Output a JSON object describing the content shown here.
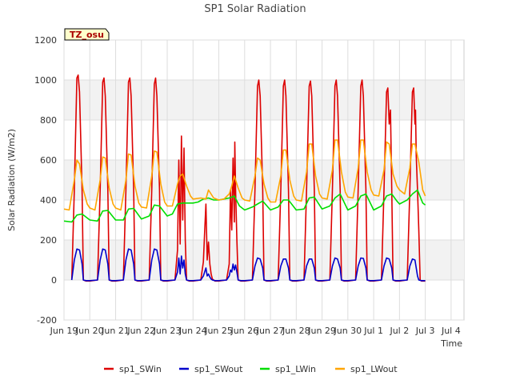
{
  "chart_data": {
    "type": "line",
    "title": "SP1 Solar Radiation",
    "xlabel": "Time",
    "ylabel": "Solar Radiation (W/m2)",
    "badge": "TZ_osu",
    "xlim": [
      0,
      15.5
    ],
    "ylim": [
      -200,
      1200
    ],
    "yticks": [
      -200,
      0,
      200,
      400,
      600,
      800,
      1000,
      1200
    ],
    "x_ticks": [
      {
        "pos": 0,
        "label": "Jun 19"
      },
      {
        "pos": 1,
        "label": "Jun 20"
      },
      {
        "pos": 2,
        "label": "Jun 21"
      },
      {
        "pos": 3,
        "label": "Jun 22"
      },
      {
        "pos": 4,
        "label": "Jun 23"
      },
      {
        "pos": 5,
        "label": "Jun 24"
      },
      {
        "pos": 6,
        "label": "Jun 25"
      },
      {
        "pos": 7,
        "label": "Jun 26"
      },
      {
        "pos": 8,
        "label": "Jun 27"
      },
      {
        "pos": 9,
        "label": "Jun 28"
      },
      {
        "pos": 10,
        "label": "Jun 29"
      },
      {
        "pos": 11,
        "label": "Jun 30"
      },
      {
        "pos": 12,
        "label": "Jul 1"
      },
      {
        "pos": 13,
        "label": "Jul 2"
      },
      {
        "pos": 14,
        "label": "Jul 3"
      },
      {
        "pos": 15,
        "label": "Jul 4"
      }
    ],
    "grid": true,
    "legend_position": "bottom",
    "series": [
      {
        "name": "sp1_SWin",
        "color": "#dd0000",
        "x": [
          0.3,
          0.4,
          0.5,
          0.55,
          0.6,
          0.7,
          0.75,
          0.85,
          1.0,
          1.3,
          1.4,
          1.5,
          1.55,
          1.6,
          1.7,
          1.75,
          1.85,
          2.0,
          2.3,
          2.4,
          2.5,
          2.55,
          2.6,
          2.7,
          2.75,
          2.85,
          3.0,
          3.3,
          3.4,
          3.5,
          3.55,
          3.6,
          3.7,
          3.75,
          3.85,
          4.0,
          4.3,
          4.4,
          4.45,
          4.5,
          4.55,
          4.6,
          4.65,
          4.7,
          4.75,
          4.85,
          5.0,
          5.3,
          5.4,
          5.45,
          5.5,
          5.55,
          5.6,
          5.65,
          5.7,
          5.75,
          5.8,
          5.85,
          6.0,
          6.3,
          6.4,
          6.45,
          6.5,
          6.55,
          6.6,
          6.62,
          6.65,
          6.7,
          6.75,
          6.85,
          7.0,
          7.3,
          7.4,
          7.5,
          7.55,
          7.6,
          7.7,
          7.75,
          7.85,
          8.0,
          8.3,
          8.4,
          8.5,
          8.55,
          8.6,
          8.7,
          8.75,
          8.85,
          9.0,
          9.3,
          9.4,
          9.5,
          9.55,
          9.6,
          9.7,
          9.75,
          9.85,
          10.0,
          10.3,
          10.4,
          10.5,
          10.55,
          10.6,
          10.7,
          10.75,
          10.85,
          11.0,
          11.3,
          11.4,
          11.5,
          11.55,
          11.6,
          11.7,
          11.75,
          11.85,
          12.0,
          12.3,
          12.4,
          12.5,
          12.55,
          12.6,
          12.65,
          12.7,
          12.75,
          12.85,
          13.0,
          13.3,
          13.4,
          13.5,
          13.55,
          13.6,
          13.62,
          13.65,
          13.7,
          13.75,
          13.8,
          13.85,
          14.0
        ],
        "y": [
          0,
          450,
          1010,
          1025,
          940,
          450,
          0,
          -5,
          -5,
          0,
          450,
          990,
          1010,
          920,
          450,
          0,
          -5,
          -5,
          0,
          450,
          990,
          1010,
          920,
          450,
          0,
          -5,
          -5,
          0,
          450,
          980,
          1010,
          920,
          450,
          0,
          -5,
          -5,
          0,
          150,
          600,
          180,
          720,
          300,
          660,
          200,
          0,
          -5,
          -5,
          0,
          90,
          240,
          380,
          100,
          190,
          80,
          30,
          5,
          0,
          -5,
          -5,
          0,
          80,
          450,
          250,
          610,
          290,
          690,
          450,
          200,
          0,
          -5,
          -5,
          0,
          450,
          970,
          1000,
          920,
          450,
          0,
          -5,
          -5,
          0,
          450,
          970,
          1000,
          920,
          450,
          0,
          -5,
          -5,
          0,
          450,
          970,
          995,
          920,
          450,
          0,
          -5,
          -5,
          0,
          450,
          970,
          1000,
          920,
          450,
          0,
          -5,
          -5,
          0,
          450,
          970,
          1000,
          920,
          450,
          0,
          -5,
          -5,
          0,
          450,
          940,
          960,
          780,
          850,
          450,
          0,
          -5,
          -5,
          0,
          450,
          940,
          960,
          780,
          850,
          620,
          450,
          250,
          0,
          -5,
          -5
        ]
      },
      {
        "name": "sp1_SWout",
        "color": "#0000cc",
        "x": [
          0.3,
          0.4,
          0.5,
          0.6,
          0.7,
          0.75,
          0.85,
          1.0,
          1.3,
          1.4,
          1.5,
          1.6,
          1.7,
          1.75,
          1.85,
          2.0,
          2.3,
          2.4,
          2.5,
          2.6,
          2.7,
          2.75,
          2.85,
          3.0,
          3.3,
          3.4,
          3.5,
          3.6,
          3.7,
          3.75,
          3.85,
          4.0,
          4.3,
          4.4,
          4.45,
          4.5,
          4.55,
          4.6,
          4.65,
          4.7,
          4.75,
          4.85,
          5.0,
          5.3,
          5.4,
          5.45,
          5.5,
          5.55,
          5.6,
          5.65,
          5.7,
          5.75,
          5.85,
          6.0,
          6.3,
          6.4,
          6.45,
          6.5,
          6.55,
          6.6,
          6.65,
          6.7,
          6.75,
          6.85,
          7.0,
          7.3,
          7.4,
          7.5,
          7.6,
          7.7,
          7.75,
          7.85,
          8.0,
          8.3,
          8.4,
          8.5,
          8.6,
          8.7,
          8.75,
          8.85,
          9.0,
          9.3,
          9.4,
          9.5,
          9.6,
          9.7,
          9.75,
          9.85,
          10.0,
          10.3,
          10.4,
          10.5,
          10.6,
          10.7,
          10.75,
          10.85,
          11.0,
          11.3,
          11.4,
          11.5,
          11.6,
          11.7,
          11.75,
          11.85,
          12.0,
          12.3,
          12.4,
          12.5,
          12.6,
          12.7,
          12.75,
          12.85,
          13.0,
          13.3,
          13.4,
          13.5,
          13.6,
          13.65,
          13.7,
          13.75,
          13.85,
          14.0
        ],
        "y": [
          0,
          100,
          155,
          150,
          80,
          0,
          -3,
          -3,
          0,
          100,
          155,
          150,
          80,
          0,
          -3,
          -3,
          0,
          100,
          155,
          150,
          80,
          0,
          -3,
          -3,
          0,
          100,
          155,
          150,
          80,
          0,
          -3,
          -3,
          0,
          40,
          110,
          30,
          120,
          60,
          100,
          30,
          0,
          -3,
          -3,
          0,
          20,
          40,
          60,
          20,
          30,
          15,
          5,
          0,
          -3,
          -3,
          0,
          20,
          50,
          40,
          80,
          50,
          75,
          40,
          0,
          -3,
          -3,
          0,
          70,
          110,
          105,
          60,
          0,
          -3,
          -3,
          0,
          70,
          105,
          105,
          60,
          0,
          -3,
          -3,
          0,
          70,
          105,
          105,
          60,
          0,
          -3,
          -3,
          0,
          70,
          110,
          105,
          60,
          0,
          -3,
          -3,
          0,
          70,
          110,
          108,
          60,
          0,
          -3,
          -3,
          0,
          70,
          110,
          105,
          60,
          0,
          -3,
          -3,
          0,
          70,
          105,
          100,
          60,
          20,
          0,
          -3,
          -3
        ]
      },
      {
        "name": "sp1_LWin",
        "color": "#00dd00",
        "x": [
          0.0,
          0.3,
          0.5,
          0.7,
          1.0,
          1.3,
          1.5,
          1.7,
          2.0,
          2.3,
          2.5,
          2.7,
          3.0,
          3.3,
          3.5,
          3.7,
          4.0,
          4.2,
          4.4,
          4.6,
          4.8,
          5.0,
          5.2,
          5.4,
          5.6,
          5.8,
          6.0,
          6.2,
          6.4,
          6.6,
          6.8,
          7.0,
          7.3,
          7.5,
          7.7,
          8.0,
          8.3,
          8.5,
          8.7,
          9.0,
          9.3,
          9.5,
          9.7,
          10.0,
          10.3,
          10.5,
          10.7,
          11.0,
          11.3,
          11.5,
          11.7,
          12.0,
          12.3,
          12.5,
          12.7,
          12.9,
          13.0,
          13.3,
          13.5,
          13.7,
          13.9,
          14.0
        ],
        "y": [
          295,
          290,
          325,
          330,
          300,
          295,
          345,
          348,
          300,
          300,
          355,
          358,
          305,
          320,
          375,
          370,
          320,
          330,
          380,
          385,
          385,
          385,
          390,
          405,
          410,
          400,
          400,
          405,
          410,
          420,
          370,
          350,
          365,
          380,
          395,
          350,
          365,
          400,
          400,
          350,
          355,
          410,
          415,
          355,
          370,
          410,
          430,
          350,
          370,
          420,
          430,
          350,
          370,
          420,
          430,
          395,
          380,
          400,
          430,
          450,
          385,
          375
        ]
      },
      {
        "name": "sp1_LWout",
        "color": "#ffa500",
        "x": [
          0.0,
          0.2,
          0.4,
          0.5,
          0.6,
          0.75,
          0.9,
          1.0,
          1.2,
          1.4,
          1.5,
          1.6,
          1.75,
          1.9,
          2.0,
          2.2,
          2.4,
          2.5,
          2.6,
          2.75,
          2.9,
          3.0,
          3.2,
          3.4,
          3.5,
          3.6,
          3.75,
          3.9,
          4.0,
          4.2,
          4.4,
          4.5,
          4.6,
          4.75,
          4.9,
          5.0,
          5.3,
          5.5,
          5.6,
          5.8,
          6.0,
          6.2,
          6.4,
          6.5,
          6.6,
          6.75,
          6.9,
          7.0,
          7.2,
          7.4,
          7.5,
          7.6,
          7.75,
          7.9,
          8.0,
          8.2,
          8.4,
          8.5,
          8.6,
          8.75,
          8.9,
          9.0,
          9.2,
          9.4,
          9.5,
          9.6,
          9.75,
          9.9,
          10.0,
          10.2,
          10.4,
          10.5,
          10.6,
          10.75,
          10.9,
          11.0,
          11.2,
          11.4,
          11.5,
          11.6,
          11.75,
          11.9,
          12.0,
          12.2,
          12.4,
          12.5,
          12.6,
          12.75,
          12.9,
          13.0,
          13.2,
          13.4,
          13.5,
          13.6,
          13.75,
          13.9,
          14.0
        ],
        "y": [
          355,
          350,
          500,
          600,
          580,
          450,
          380,
          360,
          350,
          500,
          615,
          610,
          460,
          380,
          360,
          350,
          500,
          630,
          625,
          470,
          385,
          365,
          360,
          520,
          645,
          640,
          480,
          390,
          370,
          370,
          480,
          520,
          530,
          470,
          420,
          405,
          410,
          405,
          450,
          410,
          400,
          405,
          430,
          470,
          520,
          460,
          410,
          400,
          395,
          520,
          610,
          600,
          480,
          410,
          390,
          390,
          520,
          650,
          650,
          500,
          420,
          400,
          395,
          540,
          680,
          680,
          520,
          430,
          410,
          405,
          550,
          700,
          700,
          540,
          440,
          415,
          410,
          560,
          700,
          700,
          540,
          450,
          425,
          420,
          550,
          690,
          680,
          530,
          470,
          450,
          430,
          560,
          680,
          680,
          590,
          450,
          420
        ]
      }
    ]
  }
}
